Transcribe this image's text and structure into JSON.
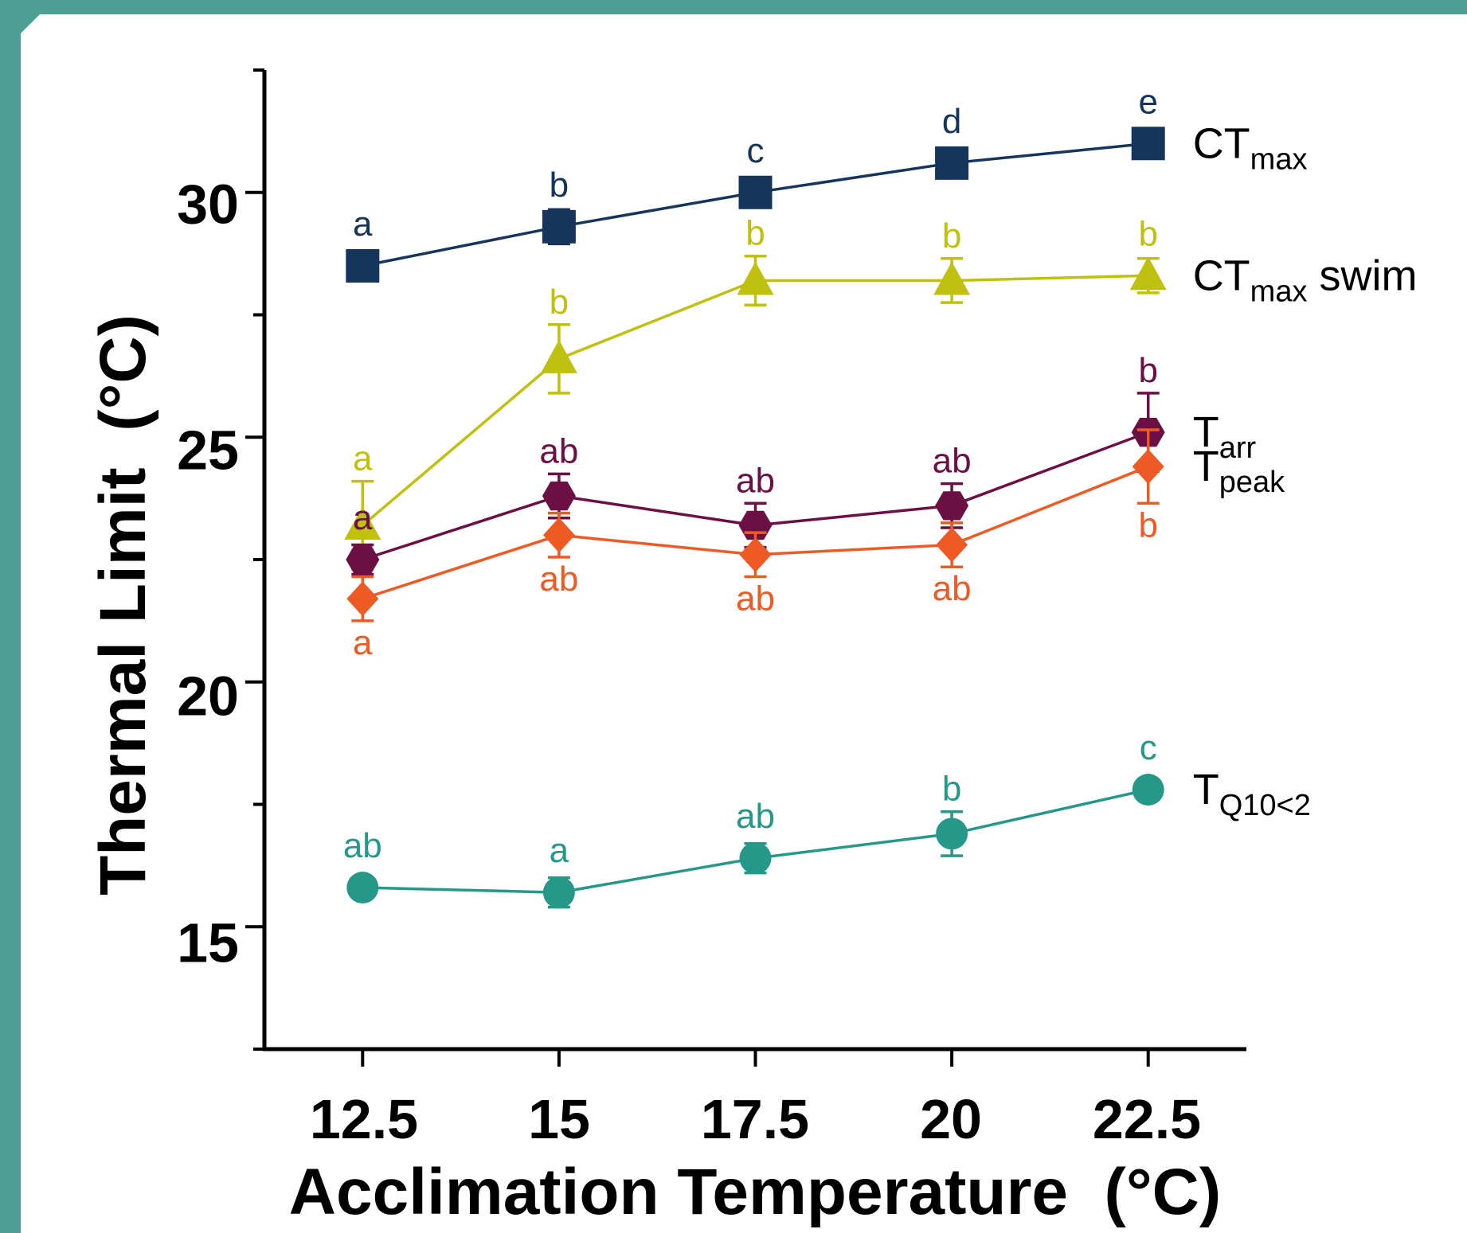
{
  "chart_data": {
    "type": "line",
    "xlabel": "Acclimation Temperature  (°C)",
    "ylabel": "Thermal Limit  (°C)",
    "x": [
      12.5,
      15,
      17.5,
      20,
      22.5
    ],
    "x_tick_labels": [
      "12.5",
      "15",
      "17.5",
      "20",
      "22.5"
    ],
    "y_ticks": [
      15,
      20,
      25,
      30
    ],
    "y_tick_labels": [
      "15",
      "20",
      "25",
      "30"
    ],
    "ylim": [
      12.5,
      32.5
    ],
    "xlim": [
      11.25,
      23.75
    ],
    "grid": false,
    "error_bars": true,
    "series": [
      {
        "key": "ctmax",
        "label_main": "CT",
        "label_sub": "max",
        "label_suffix": "",
        "color": "#15355c",
        "marker": "square",
        "values": [
          28.5,
          29.3,
          30.0,
          30.6,
          31.0
        ],
        "errors": [
          0.15,
          0.35,
          0.25,
          0.2,
          0.2
        ],
        "letters": [
          "a",
          "b",
          "c",
          "d",
          "e"
        ],
        "letter_position": "above"
      },
      {
        "key": "ctmax_swim",
        "label_main": "CT",
        "label_sub": "max",
        "label_suffix": " swim",
        "color": "#c0c010",
        "marker": "triangle",
        "values": [
          23.2,
          26.6,
          28.2,
          28.2,
          28.3
        ],
        "errors": [
          0.9,
          0.7,
          0.5,
          0.45,
          0.35
        ],
        "letters": [
          "a",
          "b",
          "b",
          "b",
          "b"
        ],
        "letter_position": "above"
      },
      {
        "key": "tarr",
        "label_main": "T",
        "label_sub": "arr",
        "label_suffix": "",
        "color": "#6b0f45",
        "marker": "hexagon",
        "values": [
          22.5,
          23.8,
          23.2,
          23.6,
          25.1
        ],
        "errors": [
          0.3,
          0.45,
          0.45,
          0.45,
          0.8
        ],
        "letters": [
          "a",
          "ab",
          "ab",
          "ab",
          "b"
        ],
        "letter_position": "above"
      },
      {
        "key": "tpeak",
        "label_main": "T",
        "label_sub": "peak",
        "label_suffix": "",
        "color": "#ee5a24",
        "marker": "diamond",
        "values": [
          21.7,
          23.0,
          22.6,
          22.8,
          24.4
        ],
        "errors": [
          0.45,
          0.45,
          0.45,
          0.45,
          0.75
        ],
        "letters": [
          "a",
          "ab",
          "ab",
          "ab",
          "b"
        ],
        "letter_position": "below"
      },
      {
        "key": "tq10",
        "label_main": "T",
        "label_sub": "Q10<2",
        "label_suffix": "",
        "color": "#26988a",
        "marker": "circle",
        "values": [
          15.8,
          15.7,
          16.4,
          16.9,
          17.8
        ],
        "errors": [
          0.15,
          0.3,
          0.3,
          0.45,
          0.2
        ],
        "letters": [
          "ab",
          "a",
          "ab",
          "b",
          "c"
        ],
        "letter_position": "above"
      }
    ]
  },
  "colors": {
    "frame_border": "#4e9f96",
    "axis": "#000000"
  }
}
